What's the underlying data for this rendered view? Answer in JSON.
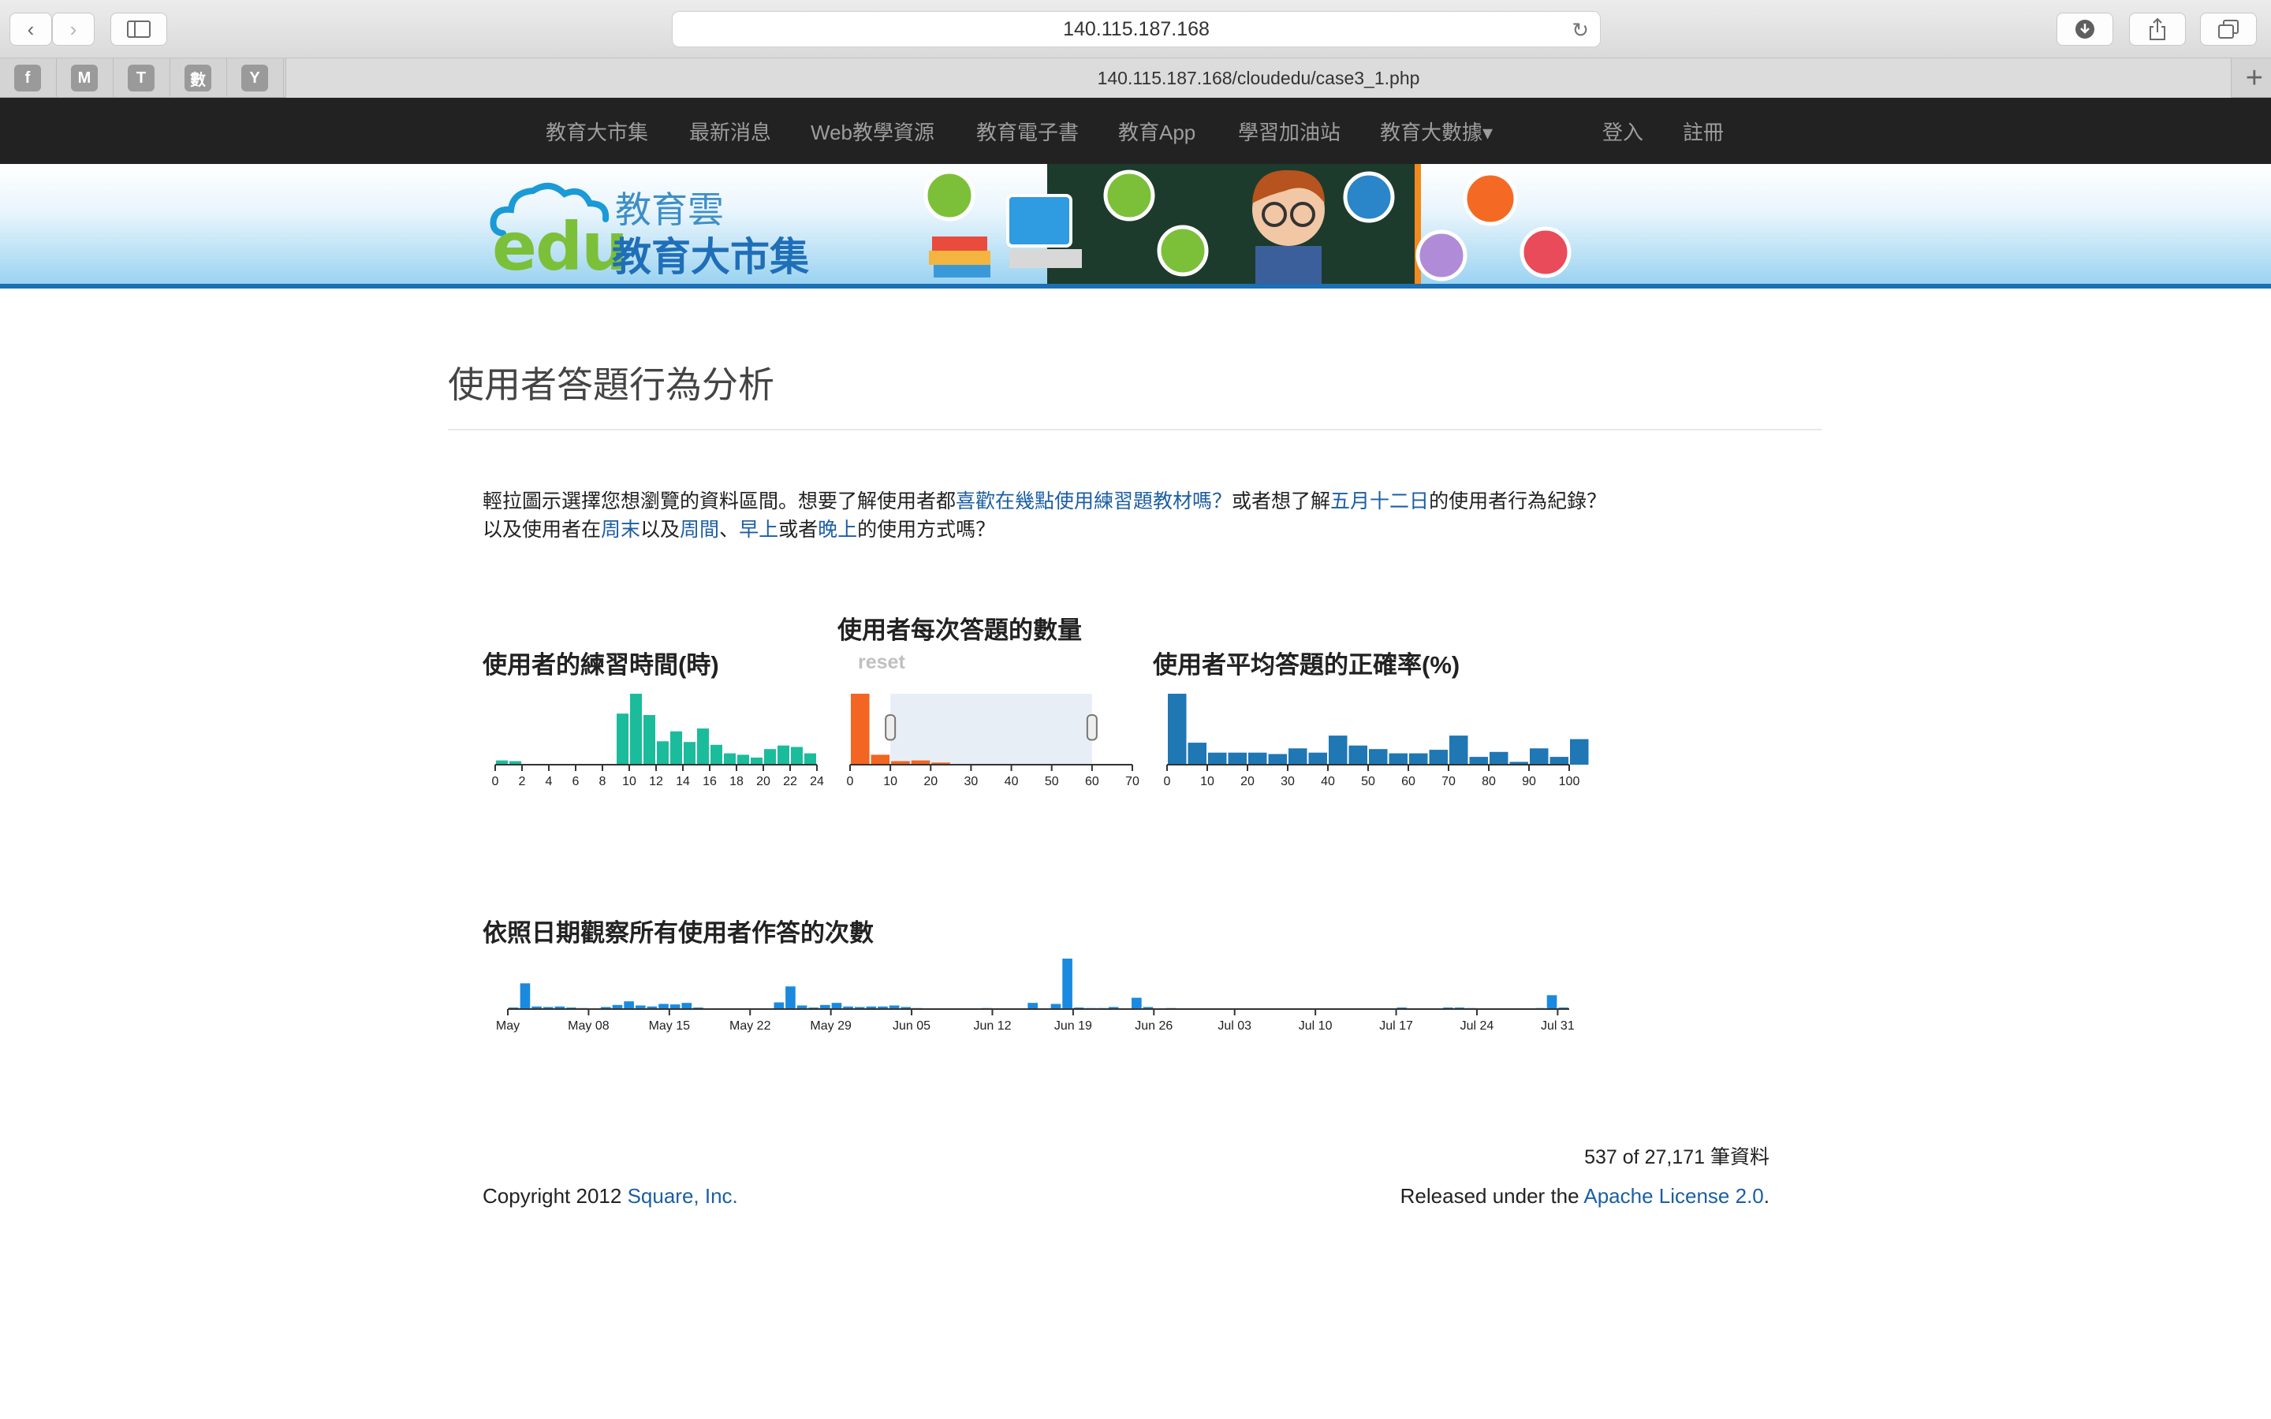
{
  "browser": {
    "url": "140.115.187.168",
    "tab_title": "140.115.187.168/cloudedu/case3_1.php",
    "favorites": [
      "f",
      "M",
      "T",
      "數",
      "Y"
    ]
  },
  "nav": {
    "items": [
      "教育大市集",
      "最新消息",
      "Web教學資源",
      "教育電子書",
      "教育App",
      "學習加油站",
      "教育大數據▾"
    ],
    "login": "登入",
    "register": "註冊"
  },
  "banner": {
    "logo_small": "教育雲",
    "logo_edu": "edu",
    "logo_big": "教育大市集"
  },
  "page": {
    "title": "使用者答題行為分析",
    "intro_line1": [
      {
        "text": "輕拉圖示選擇您想瀏覽的資料區間。想要了解使用者都",
        "link": false
      },
      {
        "text": "喜歡在幾點使用練習題教材嗎？",
        "link": true
      },
      {
        "text": "或者想了解",
        "link": false
      },
      {
        "text": "五月十二日",
        "link": true
      },
      {
        "text": "的使用者行為紀錄？",
        "link": false
      }
    ],
    "intro_line2": [
      {
        "text": "以及使用者在",
        "link": false
      },
      {
        "text": "周末",
        "link": true
      },
      {
        "text": "以及",
        "link": false
      },
      {
        "text": "周間",
        "link": true
      },
      {
        "text": "、",
        "link": false
      },
      {
        "text": "早上",
        "link": true
      },
      {
        "text": "或者",
        "link": false
      },
      {
        "text": "晚上",
        "link": true
      },
      {
        "text": "的使用方式嗎？",
        "link": false
      }
    ],
    "reset": "reset",
    "count": "537 of 27,171 筆資料",
    "copyright_prefix": "Copyright 2012 ",
    "copyright_link": "Square, Inc.",
    "license_prefix": "Released under the ",
    "license_link": "Apache License 2.0",
    "license_suffix": "."
  },
  "colors": {
    "hour": "#1bbc9b",
    "count": "#f26522",
    "accuracy": "#1f77b4",
    "date": "#1a8ae0",
    "brush": "#e8eef6"
  },
  "chart_data": [
    {
      "type": "bar",
      "title": "使用者的練習時間(時)",
      "x": [
        0,
        1,
        2,
        3,
        4,
        5,
        6,
        7,
        8,
        9,
        10,
        11,
        12,
        13,
        14,
        15,
        16,
        17,
        18,
        19,
        20,
        21,
        22,
        23
      ],
      "values": [
        6,
        5,
        0,
        0,
        0,
        0,
        0,
        0,
        1,
        72,
        100,
        70,
        33,
        47,
        32,
        51,
        28,
        16,
        14,
        10,
        22,
        27,
        25,
        16
      ],
      "ticks": [
        0,
        2,
        4,
        6,
        8,
        10,
        12,
        14,
        16,
        18,
        20,
        22,
        24
      ],
      "xlim": [
        0,
        24
      ]
    },
    {
      "type": "bar",
      "title": "使用者每次答題的數量",
      "x": [
        0,
        5,
        10,
        15,
        20,
        25,
        30,
        35,
        40,
        45,
        50,
        55,
        60,
        65
      ],
      "values": [
        100,
        14,
        5,
        6,
        3,
        1,
        1,
        0,
        1,
        0,
        0,
        0,
        0,
        0
      ],
      "ticks": [
        0,
        10,
        20,
        30,
        40,
        50,
        60,
        70
      ],
      "xlim": [
        0,
        70
      ],
      "brush": [
        10,
        60
      ]
    },
    {
      "type": "bar",
      "title": "使用者平均答題的正確率(%)",
      "x": [
        0,
        5,
        10,
        15,
        20,
        25,
        30,
        35,
        40,
        45,
        50,
        55,
        60,
        65,
        70,
        75,
        80,
        85,
        90,
        95,
        100
      ],
      "values": [
        100,
        31,
        17,
        17,
        17,
        15,
        23,
        17,
        41,
        27,
        22,
        16,
        16,
        21,
        41,
        11,
        18,
        4,
        23,
        11,
        36
      ],
      "ticks": [
        0,
        10,
        20,
        30,
        40,
        50,
        60,
        70,
        80,
        90,
        100
      ],
      "xlim": [
        0,
        100
      ]
    },
    {
      "type": "bar",
      "title": "依照日期觀察所有使用者作答的次數",
      "x_start": "May 01",
      "x_end": "Aug 01",
      "values": [
        3,
        50,
        5,
        4,
        5,
        3,
        2,
        1,
        4,
        8,
        15,
        7,
        5,
        10,
        9,
        12,
        3,
        1,
        1,
        0,
        0,
        0,
        0,
        13,
        44,
        7,
        3,
        8,
        12,
        5,
        4,
        5,
        5,
        7,
        4,
        2,
        0,
        0,
        1,
        0,
        0,
        2,
        0,
        0,
        0,
        12,
        0,
        10,
        98,
        3,
        2,
        2,
        4,
        0,
        22,
        4,
        1,
        2,
        1,
        0,
        1,
        0,
        0,
        0,
        0,
        0,
        0,
        0,
        0,
        0,
        1,
        0,
        0,
        0,
        0,
        0,
        0,
        3,
        0,
        0,
        1,
        3,
        3,
        2,
        0,
        0,
        1,
        1,
        0,
        2,
        27,
        3
      ],
      "ticks": [
        "May",
        "May 08",
        "May 15",
        "May 22",
        "May 29",
        "Jun 05",
        "Jun 12",
        "Jun 19",
        "Jun 26",
        "Jul 03",
        "Jul 10",
        "Jul 17",
        "Jul 24",
        "Jul 31"
      ]
    }
  ]
}
